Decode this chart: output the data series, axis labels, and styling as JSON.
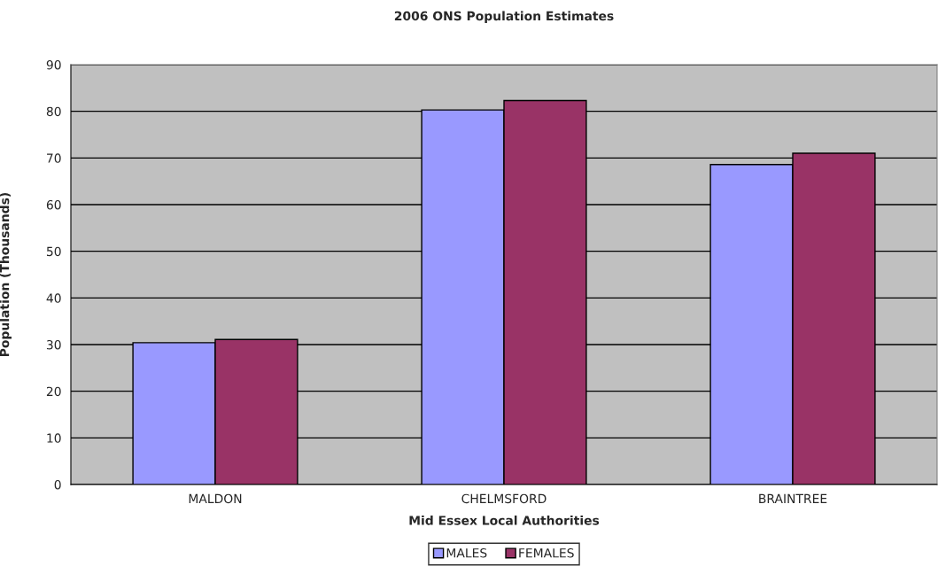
{
  "chart_data": {
    "type": "bar",
    "title": "2006 ONS Population Estimates",
    "xlabel": "Mid Essex Local Authorities",
    "ylabel": "Population (Thousands)",
    "categories": [
      "MALDON",
      "CHELMSFORD",
      "BRAINTREE"
    ],
    "series": [
      {
        "name": "MALES",
        "color": "#9999ff",
        "values": [
          30.4,
          80.3,
          68.6
        ]
      },
      {
        "name": "FEMALES",
        "color": "#993366",
        "values": [
          31.1,
          82.3,
          71.0
        ]
      }
    ],
    "ylim": [
      0,
      90
    ],
    "yticks": [
      0,
      10,
      20,
      30,
      40,
      50,
      60,
      70,
      80,
      90
    ],
    "grid": "y",
    "legend": "bottom"
  }
}
